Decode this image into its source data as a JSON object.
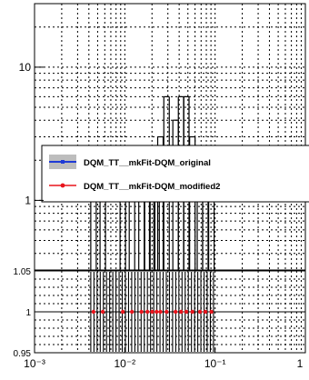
{
  "chart_data": [
    {
      "type": "line",
      "panel": "main",
      "x_scale": "log",
      "y_scale": "log",
      "xlim": [
        0.001,
        1
      ],
      "ylim": [
        0.3,
        30
      ],
      "grid": true,
      "legend_position": "center-right",
      "y_tick_labels": [
        {
          "value": 1,
          "text": "1"
        },
        {
          "value": 10,
          "text": "10"
        }
      ],
      "series": [
        {
          "name": "DQM_TT__mkFit-DQM_original",
          "color": "#1f3bd6",
          "marker": "square",
          "x": [
            0.0045,
            0.0057,
            0.0095,
            0.012,
            0.0153,
            0.0178,
            0.0201,
            0.0225,
            0.0248,
            0.029,
            0.0365,
            0.042,
            0.048,
            0.056,
            0.068,
            0.078,
            0.091
          ],
          "y": [
            1,
            1,
            1,
            1,
            1,
            1,
            1,
            1,
            1,
            1,
            1,
            1,
            1,
            1,
            1,
            1,
            1
          ]
        },
        {
          "name": "DQM_TT__mkFit-DQM_modified2",
          "color": "#e8141c",
          "marker": "circle",
          "x": [
            0.0045,
            0.0057,
            0.0095,
            0.012,
            0.0153,
            0.0178,
            0.0201,
            0.0225,
            0.0248,
            0.029,
            0.0365,
            0.042,
            0.048,
            0.056,
            0.068,
            0.078,
            0.091
          ],
          "y": [
            1,
            1,
            1,
            1,
            1,
            1,
            1,
            1,
            1,
            1,
            1,
            1,
            1,
            1,
            1,
            1,
            1
          ]
        }
      ],
      "outline_heights": [
        1,
        1,
        1,
        1,
        1,
        1,
        1,
        1,
        3,
        6,
        4,
        6,
        6,
        3,
        1,
        1,
        1
      ]
    },
    {
      "type": "line",
      "panel": "ratio",
      "x_scale": "log",
      "xlim": [
        0.001,
        1
      ],
      "ylim": [
        0.95,
        1.05
      ],
      "grid": true,
      "x_tick_labels": [
        {
          "value": 0.001,
          "text": "10⁻³"
        },
        {
          "value": 0.01,
          "text": "10⁻²"
        },
        {
          "value": 0.1,
          "text": "10⁻¹"
        },
        {
          "value": 1,
          "text": "1"
        }
      ],
      "y_tick_labels": [
        {
          "value": 0.95,
          "text": "0.95"
        },
        {
          "value": 1,
          "text": "1"
        },
        {
          "value": 1.05,
          "text": "1.05"
        }
      ],
      "series": [
        {
          "name": "DQM_TT__mkFit-DQM_modified2 / DQM_TT__mkFit-DQM_original",
          "color": "#e8141c",
          "x": [
            0.0045,
            0.0057,
            0.0095,
            0.012,
            0.0153,
            0.0178,
            0.0201,
            0.0225,
            0.0248,
            0.029,
            0.0365,
            0.042,
            0.048,
            0.056,
            0.068,
            0.078,
            0.091
          ],
          "y": [
            1,
            1,
            1,
            1,
            1,
            1,
            1,
            1,
            1,
            1,
            1,
            1,
            1,
            1,
            1,
            1,
            1
          ]
        }
      ],
      "band_x_range": [
        0.0042,
        0.096
      ],
      "band_lines_count": 40
    }
  ]
}
